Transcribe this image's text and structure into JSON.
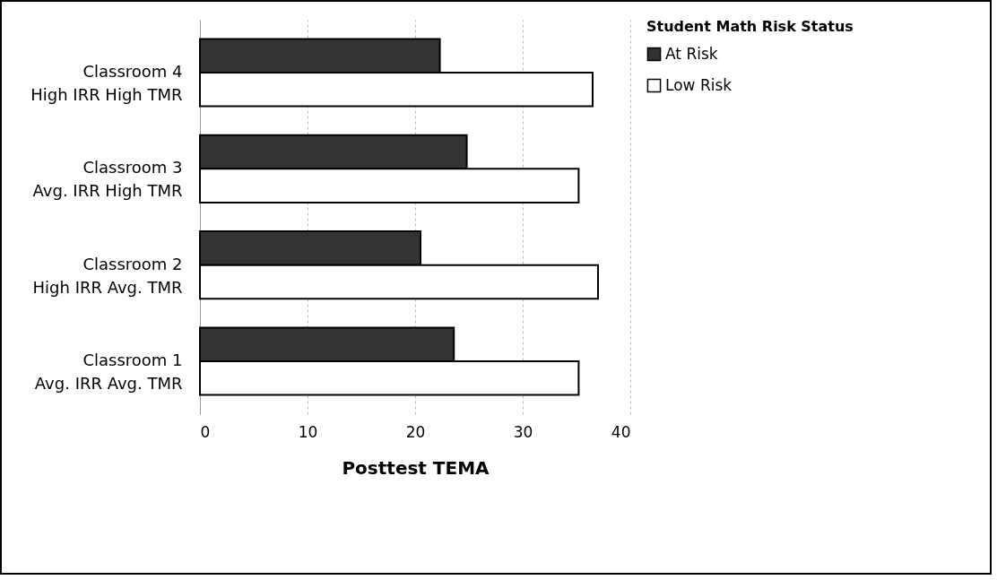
{
  "chart_data": {
    "type": "bar",
    "orientation": "horizontal",
    "xlabel": "Posttest TEMA",
    "legend_title": "Student Math Risk Status",
    "categories": [
      "Classroom 4\nHigh IRR   High TMR",
      "Classroom 3\nAvg. IRR   High TMR",
      "Classroom 2\nHigh IRR   Avg. TMR",
      "Classroom 1\nAvg. IRR   Avg. TMR"
    ],
    "series": [
      {
        "name": "At Risk",
        "color": "#333333",
        "values": [
          22.3,
          24.8,
          20.5,
          23.6
        ]
      },
      {
        "name": "Low Risk",
        "color": "#ffffff",
        "values": [
          36.5,
          35.2,
          37,
          35.2
        ]
      }
    ],
    "xlim": [
      0,
      40
    ],
    "xticks": [
      0,
      10,
      20,
      30,
      40
    ],
    "grid": "x",
    "legend": "right"
  }
}
